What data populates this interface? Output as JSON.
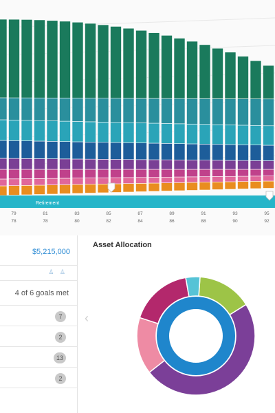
{
  "retirement_label": "Retirement",
  "age_axis": {
    "top_row": [
      "79",
      "81",
      "83",
      "85",
      "87",
      "89",
      "91",
      "93",
      "95"
    ],
    "bottom_row": [
      "78",
      "78",
      "80",
      "82",
      "84",
      "86",
      "88",
      "90",
      "92"
    ]
  },
  "summary": {
    "total_value": "$5,215,000",
    "person_icons": "♙ ♙",
    "goals_met": "4 of 6 goals met",
    "counts": [
      "7",
      "2",
      "13",
      "2"
    ]
  },
  "allocation_panel": {
    "title": "Asset Allocation",
    "prev_arrow": "‹"
  },
  "colors": {
    "accent_teal": "#26b5c9",
    "link_blue": "#2a8ad4",
    "stack_dark_green": "#1a7a5c",
    "stack_teal": "#2a8f9d",
    "stack_cyan": "#2aa4b8",
    "stack_navy": "#1d5d9a",
    "stack_purple": "#7a3f95",
    "stack_magenta": "#c0418b",
    "stack_pink": "#e0679a",
    "stack_orange": "#e98d1f",
    "donut_outer_purple": "#7b3f98",
    "donut_outer_pink": "#ee8ba4",
    "donut_outer_magenta": "#b3286c",
    "donut_outer_cyan": "#56c3d6",
    "donut_outer_lime": "#9dc447",
    "donut_inner_blue": "#1f86cc"
  },
  "icons": [
    "retirement-marker-icon",
    "person-icon",
    "chevron-left-icon"
  ]
}
